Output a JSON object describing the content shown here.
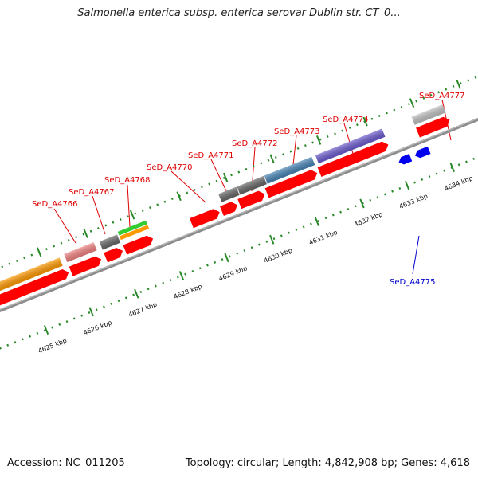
{
  "title": "Salmonella enterica subsp. enterica serovar Dublin str. CT_0...",
  "accession": "Accession: NC_011205",
  "summary": "Topology: circular; Length: 4,842,908 bp; Genes: 4,618",
  "colors": {
    "forward_label": "#dd0000",
    "reverse_label": "#0000cc",
    "backbone": "#8c8c8c",
    "ticks": "#2a8a2a",
    "cds": "#ff0000",
    "reverse_cds": "#0000ee"
  },
  "kbp_labels": [
    "4625 kbp",
    "4626 kbp",
    "4627 kbp",
    "4628 kbp",
    "4629 kbp",
    "4630 kbp",
    "4631 kbp",
    "4632 kbp",
    "4633 kbp",
    "4634 kbp"
  ],
  "forward_gene_labels": [
    "SeD_A4766",
    "SeD_A4767",
    "SeD_A4768",
    "SeD_A4770",
    "SeD_A4771",
    "SeD_A4772",
    "SeD_A4773",
    "SeD_A4774",
    "SeD_A4777"
  ],
  "reverse_gene_labels": [
    "SeD_A4775"
  ],
  "feature_colors": [
    "#ff9900",
    "#f08080",
    "#666666",
    "#33cc33",
    "#ff9900",
    "#666666",
    "#666666",
    "#4682b4",
    "#6a5acd",
    "#c0c0c0"
  ]
}
